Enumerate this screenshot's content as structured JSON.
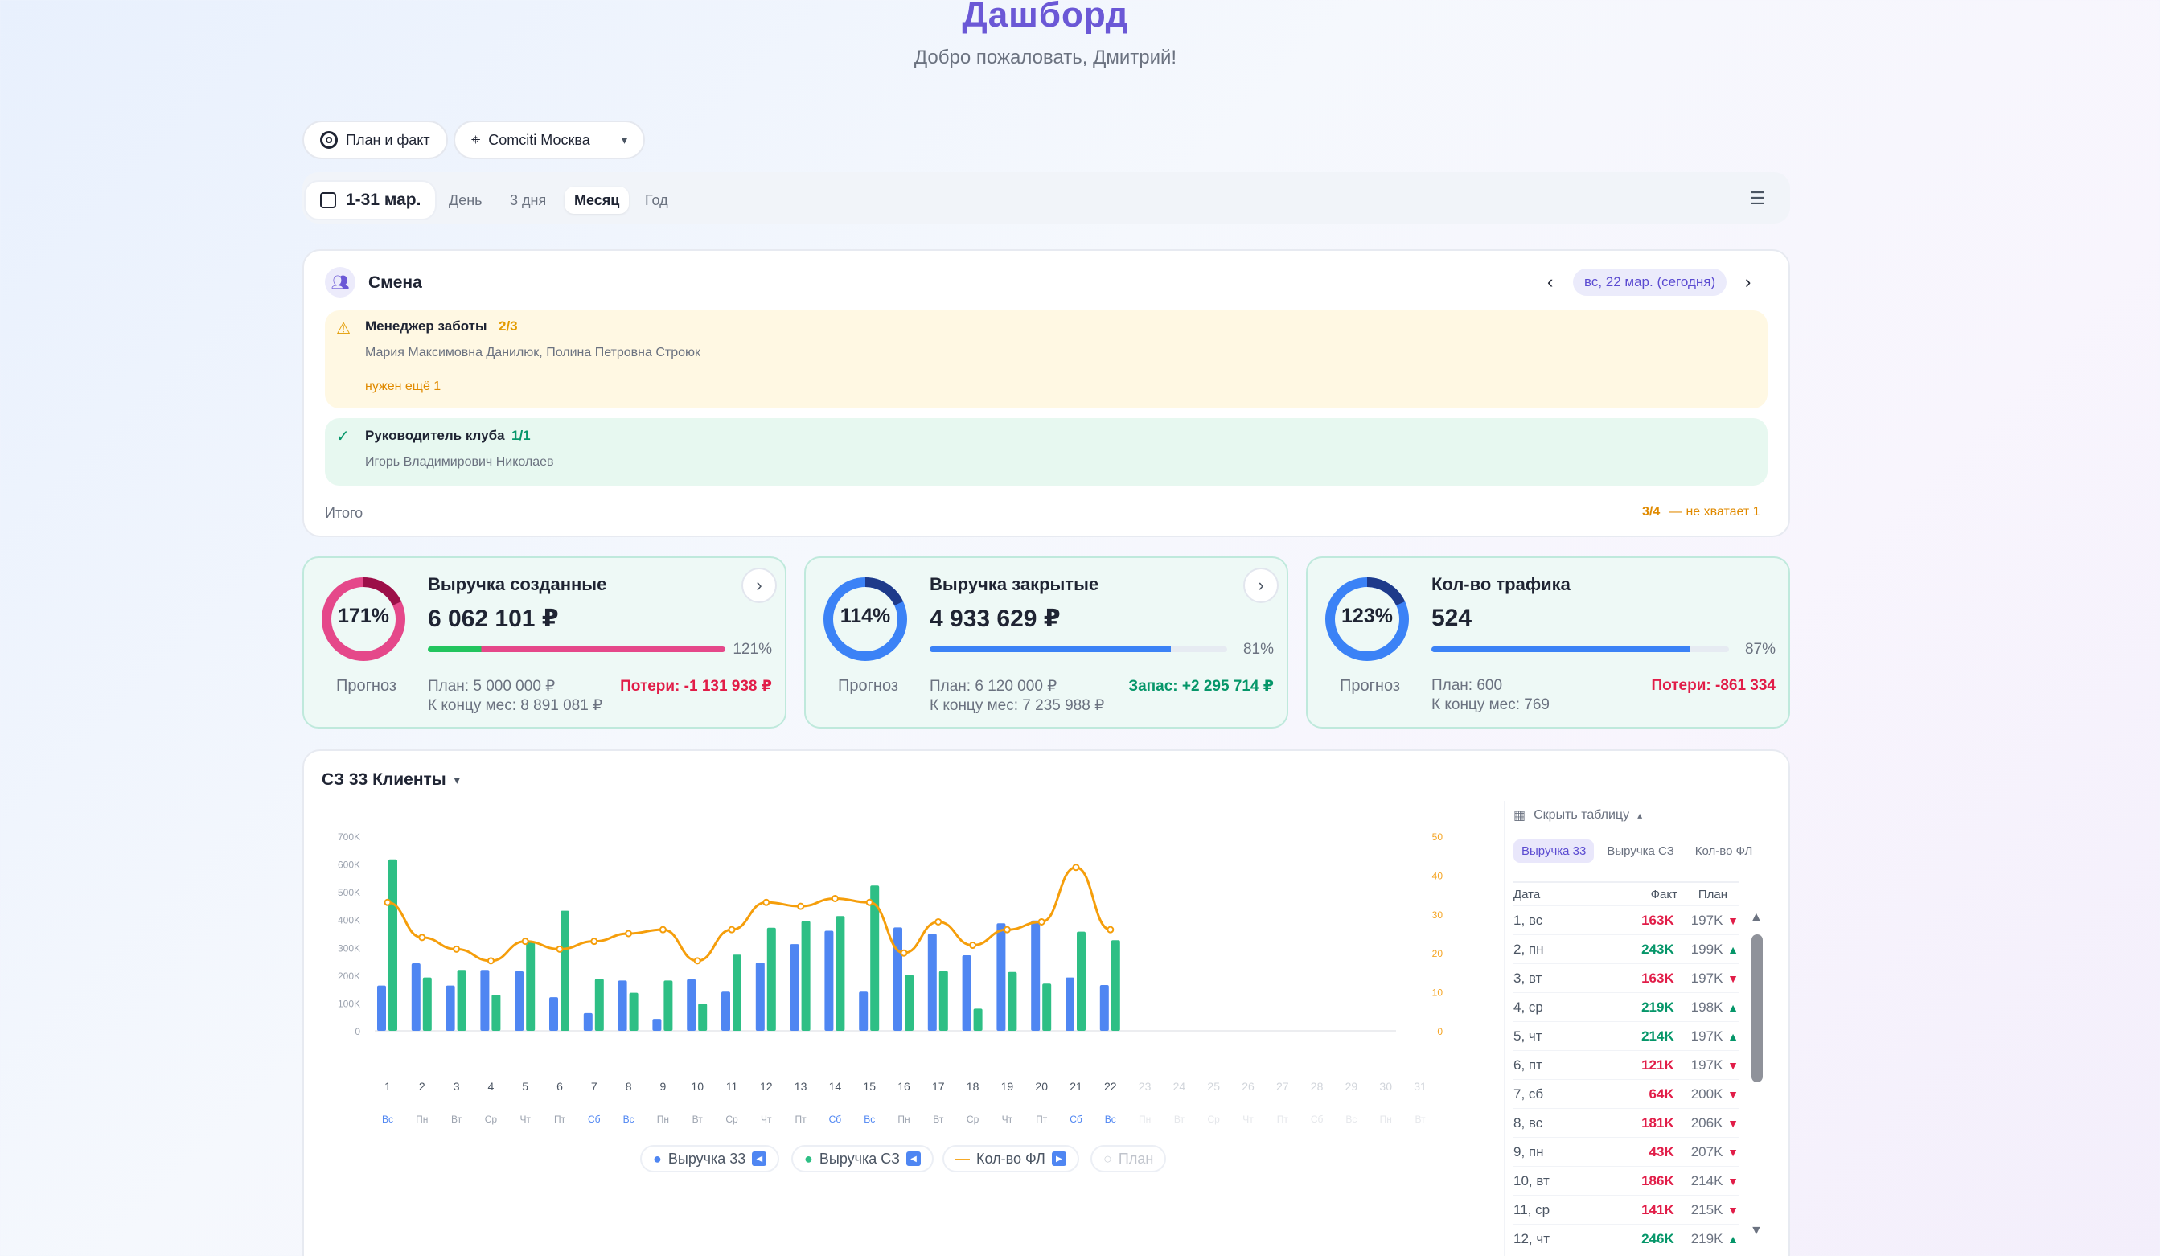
{
  "header": {
    "title": "Дашборд",
    "subtitle": "Добро пожаловать, Дмитрий!"
  },
  "filters": {
    "mode_label": "План и факт",
    "club_label": "Comciti Москва",
    "date_range": "1-31 мар.",
    "periods": [
      "День",
      "3 дня",
      "Месяц",
      "Год"
    ],
    "active_period": "Месяц"
  },
  "shift": {
    "title": "Смена",
    "date_label": "вс, 22 мар. (сегодня)",
    "roles": [
      {
        "name": "Менеджер заботы",
        "count": "2/3",
        "people": "Мария Максимовна Данилюк, Полина Петровна Строюк",
        "note": "нужен ещё 1",
        "status": "warning"
      },
      {
        "name": "Руководитель клуба",
        "count": "1/1",
        "people": "Игорь Владимирович Николаев",
        "status": "ok"
      }
    ],
    "total_label": "Итого",
    "total_value": "3/4",
    "total_note": "— не хватает 1"
  },
  "kpis": [
    {
      "name": "Выручка созданные",
      "value": "6 062 101 ₽",
      "ring_pct": "171%",
      "ring_level": 1.0,
      "bar_pct": "121%",
      "bar_level": 1.0,
      "forecast": "Прогноз",
      "plan": "План: 5 000 000 ₽",
      "rest": "К концу мес: 8 891 081 ₽",
      "delta": "Потери: -1 131 938 ₽",
      "delta_color": "#e11d48",
      "ring_color": "#e5488a",
      "ring_dark": "#9c0f48"
    },
    {
      "name": "Выручка закрытые",
      "value": "4 933 629 ₽",
      "ring_pct": "114%",
      "ring_level": 1.0,
      "bar_pct": "81%",
      "bar_level": 0.81,
      "forecast": "Прогноз",
      "plan": "План: 6 120 000 ₽",
      "rest": "К концу мес: 7 235 988 ₽",
      "delta": "Запас: +2 295 714 ₽",
      "delta_color": "#059669",
      "ring_color": "#3b82f6",
      "ring_dark": "#1e3a8a"
    },
    {
      "name": "Кол-во трафика",
      "value": "524",
      "ring_pct": "123%",
      "ring_level": 1.0,
      "bar_pct": "87%",
      "bar_level": 0.87,
      "forecast": "Прогноз",
      "plan": "План: 600",
      "rest": "К концу мес: 769",
      "delta": "Потери: -861 334",
      "delta_color": "#e11d48",
      "ring_color": "#3b82f6",
      "ring_dark": "#1e3a8a"
    }
  ],
  "chart_section": {
    "title": "СЗ 33 Клиенты",
    "table_toggle": "Скрыть таблицу",
    "table_tabs": [
      "Выручка 33",
      "Выручка СЗ",
      "Кол-во ФЛ"
    ],
    "table_headers": [
      "Дата",
      "Факт",
      "План"
    ],
    "table_rows": [
      {
        "date": "1, вс",
        "fact": "163K",
        "plan": "197K",
        "dir": "down"
      },
      {
        "date": "2, пн",
        "fact": "243K",
        "plan": "199K",
        "dir": "up"
      },
      {
        "date": "3, вт",
        "fact": "163K",
        "plan": "197K",
        "dir": "down"
      },
      {
        "date": "4, ср",
        "fact": "219K",
        "plan": "198K",
        "dir": "up"
      },
      {
        "date": "5, чт",
        "fact": "214K",
        "plan": "197K",
        "dir": "up"
      },
      {
        "date": "6, пт",
        "fact": "121K",
        "plan": "197K",
        "dir": "down"
      },
      {
        "date": "7, сб",
        "fact": "64K",
        "plan": "200K",
        "dir": "down"
      },
      {
        "date": "8, вс",
        "fact": "181K",
        "plan": "206K",
        "dir": "down"
      },
      {
        "date": "9, пн",
        "fact": "43K",
        "plan": "207K",
        "dir": "down"
      },
      {
        "date": "10, вт",
        "fact": "186K",
        "plan": "214K",
        "dir": "down"
      },
      {
        "date": "11, ср",
        "fact": "141K",
        "plan": "215K",
        "dir": "down"
      },
      {
        "date": "12, чт",
        "fact": "246K",
        "plan": "219K",
        "dir": "up"
      }
    ],
    "legend": [
      "Выручка 33",
      "Выручка СЗ",
      "Кол-во ФЛ",
      "План"
    ]
  },
  "colors": {
    "accent": "#6b58d6",
    "blue": "#4f86f2",
    "green": "#2ebf85",
    "orange": "#f59e0b",
    "red": "#e11d48",
    "up": "#059669"
  },
  "icons": [
    "target-icon",
    "location-pin-icon",
    "chevron-down-icon",
    "calendar-icon",
    "filter-sliders-icon",
    "users-icon",
    "warning-icon",
    "check-icon",
    "chevron-left-icon",
    "chevron-right-icon",
    "table-icon",
    "chevron-up-icon"
  ],
  "chart_data": {
    "type": "bar",
    "days": [
      "1",
      "2",
      "3",
      "4",
      "5",
      "6",
      "7",
      "8",
      "9",
      "10",
      "11",
      "12",
      "13",
      "14",
      "15",
      "16",
      "17",
      "18",
      "19",
      "20",
      "21",
      "22",
      "23",
      "24",
      "25",
      "26",
      "27",
      "28",
      "29",
      "30",
      "31"
    ],
    "weekdays": [
      "Вс",
      "Пн",
      "Вт",
      "Ср",
      "Чт",
      "Пт",
      "Сб",
      "Вс",
      "Пн",
      "Вт",
      "Ср",
      "Чт",
      "Пт",
      "Сб",
      "Вс",
      "Пн",
      "Вт",
      "Ср",
      "Чт",
      "Пт",
      "Сб",
      "Вс",
      "Пн",
      "Вт",
      "Ср",
      "Чт",
      "Пт",
      "Сб",
      "Вс",
      "Пн",
      "Вт"
    ],
    "y_left_ticks": [
      "0",
      "100K",
      "200K",
      "300K",
      "400K",
      "500K",
      "600K",
      "700K"
    ],
    "y_left_range": [
      0,
      700000
    ],
    "y_right_ticks": [
      "0",
      "10",
      "20",
      "30",
      "40",
      "50"
    ],
    "y_right_range": [
      0,
      50
    ],
    "series": [
      {
        "name": "Выручка 33",
        "type": "bar",
        "values": [
          163000,
          243000,
          163000,
          219000,
          214000,
          121000,
          64000,
          181000,
          43000,
          186000,
          141000,
          246000,
          312000,
          360000,
          141000,
          372000,
          349000,
          272000,
          387000,
          397000,
          192000,
          165000
        ]
      },
      {
        "name": "Выручка СЗ",
        "type": "bar",
        "values": [
          617000,
          192000,
          219000,
          130000,
          320000,
          432000,
          187000,
          137000,
          181000,
          98000,
          274000,
          371000,
          395000,
          413000,
          523000,
          202000,
          215000,
          80000,
          212000,
          170000,
          357000,
          326000
        ]
      },
      {
        "name": "Кол-во ФЛ",
        "type": "line",
        "values": [
          33,
          24,
          21,
          18,
          23,
          21,
          23,
          25,
          26,
          18,
          26,
          33,
          32,
          34,
          33,
          20,
          28,
          22,
          26,
          28,
          42,
          26
        ]
      },
      {
        "name": "План",
        "type": "bar",
        "values": []
      }
    ]
  }
}
